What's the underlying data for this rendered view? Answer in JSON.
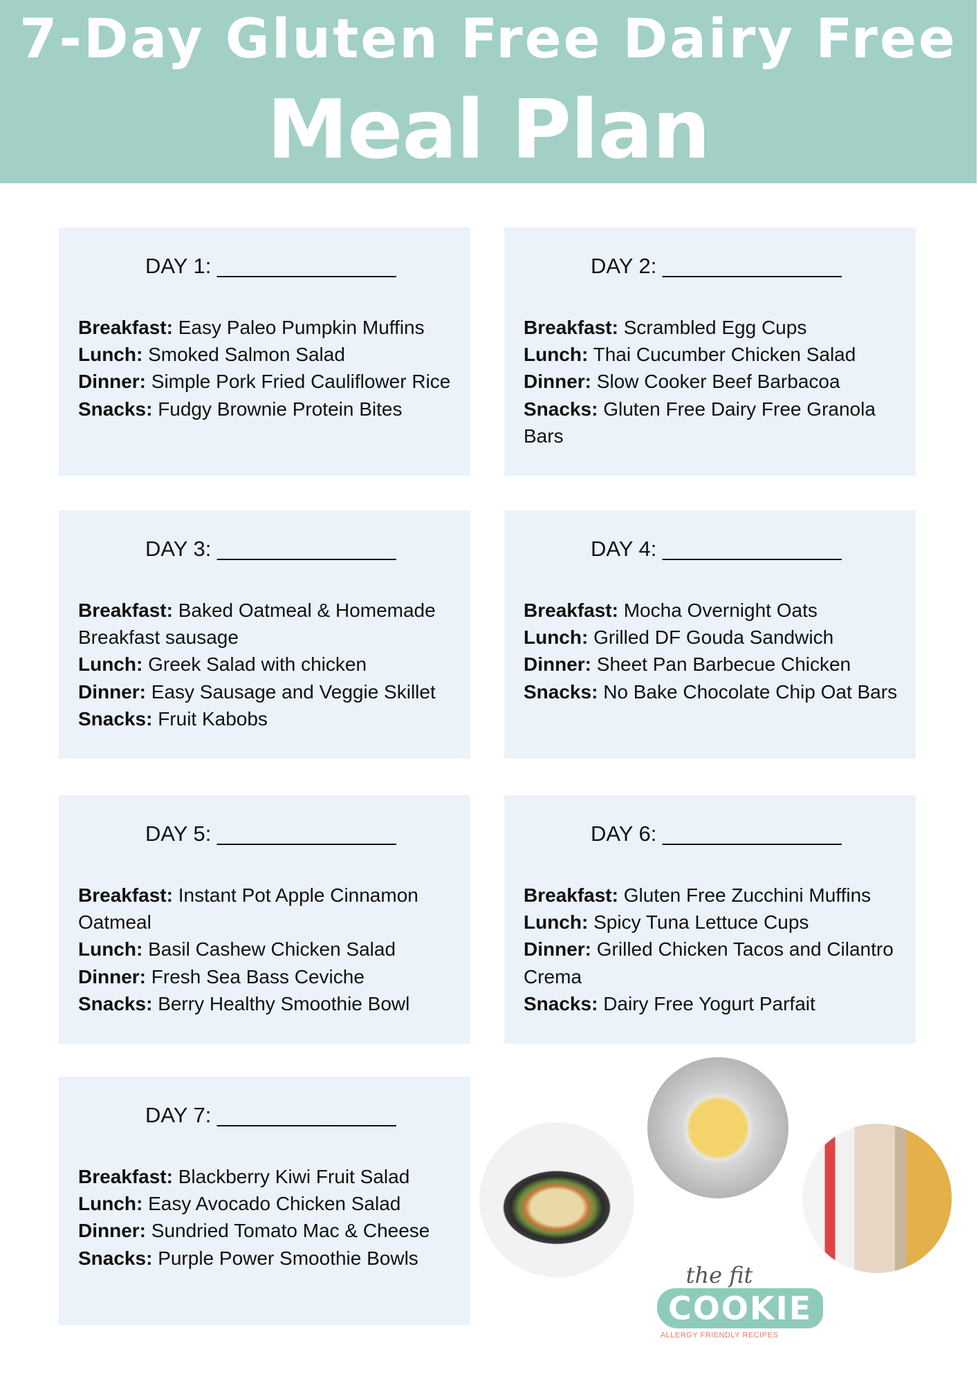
{
  "header": {
    "title_line1": "7-Day Gluten Free Dairy Free",
    "title_line2": "Meal Plan"
  },
  "labels": {
    "breakfast": "Breakfast:",
    "lunch": "Lunch:",
    "dinner": "Dinner:",
    "snacks": "Snacks:"
  },
  "days": [
    {
      "label": "DAY 1: _______________",
      "breakfast": "Easy Paleo Pumpkin Muffins",
      "lunch": "Smoked Salmon Salad",
      "dinner": "Simple Pork Fried Cauliflower Rice",
      "snacks": "Fudgy Brownie Protein Bites"
    },
    {
      "label": "DAY 2: _______________",
      "breakfast": "Scrambled Egg Cups",
      "lunch": "Thai Cucumber Chicken Salad",
      "dinner": "Slow Cooker Beef Barbacoa",
      "snacks": "Gluten Free Dairy Free Granola Bars"
    },
    {
      "label": "DAY 3: _______________",
      "breakfast": "Baked Oatmeal & Homemade Breakfast sausage",
      "lunch": "Greek Salad with chicken",
      "dinner": "Easy Sausage and Veggie Skillet",
      "snacks": "Fruit Kabobs"
    },
    {
      "label": "DAY 4: _______________",
      "breakfast": "Mocha Overnight Oats",
      "lunch": "Grilled DF Gouda Sandwich",
      "dinner": "Sheet Pan Barbecue Chicken",
      "snacks": "No Bake Chocolate Chip Oat Bars"
    },
    {
      "label": "DAY 5: _______________",
      "breakfast": "Instant Pot Apple Cinnamon Oatmeal",
      "lunch": "Basil Cashew Chicken Salad",
      "dinner": "Fresh Sea Bass Ceviche",
      "snacks": "Berry Healthy Smoothie Bowl"
    },
    {
      "label": "DAY 6: _______________",
      "breakfast": "Gluten Free Zucchini Muffins",
      "lunch": "Spicy Tuna Lettuce Cups",
      "dinner": "Grilled Chicken Tacos and Cilantro Crema",
      "snacks": "Dairy Free Yogurt Parfait"
    },
    {
      "label": "DAY 7: _______________",
      "breakfast": "Blackberry Kiwi Fruit Salad",
      "lunch": "Easy Avocado Chicken Salad",
      "dinner": "Sundried Tomato Mac & Cheese",
      "snacks": "Purple Power Smoothie Bowls"
    }
  ],
  "logo": {
    "line1": "the fit",
    "line2": "COOKIE",
    "tagline": "ALLERGY FRIENDLY RECIPES"
  },
  "colors": {
    "header": "#a2d0c6",
    "card": "#ebf2f9",
    "logo_accent": "#8ecbbb",
    "tagline": "#e07a6a"
  }
}
